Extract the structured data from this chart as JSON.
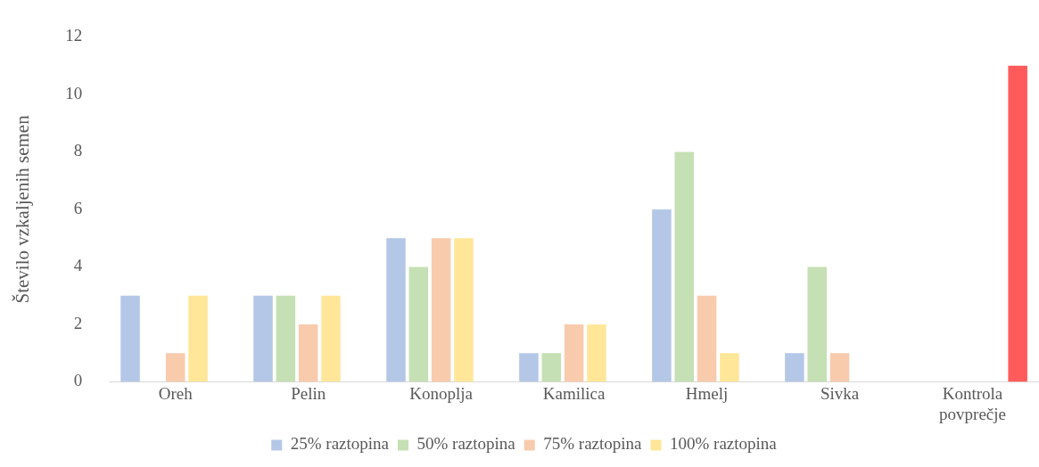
{
  "chart_data": {
    "type": "bar",
    "ylabel": "Število vzkaljenih semen",
    "categories": [
      "Oreh",
      "Pelin",
      "Konoplja",
      "Kamilica",
      "Hmelj",
      "Sivka",
      "Kontrola povprečje"
    ],
    "series": [
      {
        "name": "25% raztopina",
        "color": "#b4c7e7",
        "values": [
          3,
          3,
          5,
          1,
          6,
          1,
          null
        ]
      },
      {
        "name": "50% raztopina",
        "color": "#c5e0b4",
        "values": [
          null,
          3,
          4,
          1,
          8,
          4,
          null
        ]
      },
      {
        "name": "75% raztopina",
        "color": "#f8cbad",
        "values": [
          1,
          2,
          5,
          2,
          3,
          1,
          null
        ]
      },
      {
        "name": "100% raztopina",
        "color": "#ffe699",
        "values": [
          3,
          3,
          5,
          2,
          1,
          null,
          null
        ]
      },
      {
        "color": "#ff5b5b",
        "values": [
          null,
          null,
          null,
          null,
          null,
          null,
          11
        ]
      }
    ],
    "ylim": [
      0,
      12
    ],
    "yticks": [
      0,
      2,
      4,
      6,
      8,
      10,
      12
    ],
    "grid": false,
    "legend": "bottom"
  }
}
